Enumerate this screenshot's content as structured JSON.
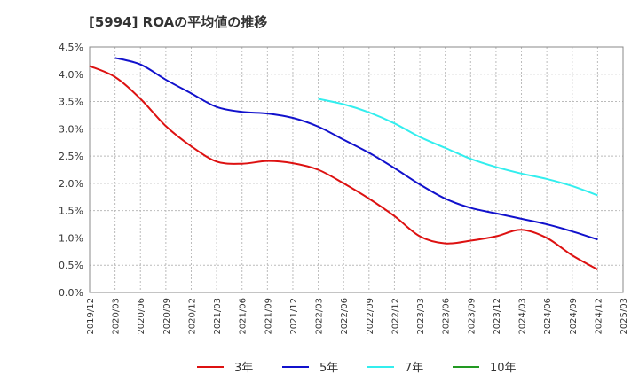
{
  "title": "[5994]  ROAの平均値の推移",
  "chart_data": {
    "type": "line",
    "title": "[5994]  ROAの平均値の推移",
    "xlabel": "",
    "ylabel": "",
    "ylim": [
      0,
      4.5
    ],
    "y_ticks": [
      "0.0%",
      "0.5%",
      "1.0%",
      "1.5%",
      "2.0%",
      "2.5%",
      "3.0%",
      "3.5%",
      "4.0%",
      "4.5%"
    ],
    "x_ticks": [
      "2019/12",
      "2020/03",
      "2020/06",
      "2020/09",
      "2020/12",
      "2021/03",
      "2021/06",
      "2021/09",
      "2021/12",
      "2022/03",
      "2022/06",
      "2022/09",
      "2022/12",
      "2023/03",
      "2023/06",
      "2023/09",
      "2023/12",
      "2024/03",
      "2024/06",
      "2024/09",
      "2024/12",
      "2025/03"
    ],
    "grid": true,
    "legend_position": "bottom",
    "series": [
      {
        "name": "3年",
        "color": "#dd1111",
        "x": [
          "2019/12",
          "2020/03",
          "2020/06",
          "2020/09",
          "2020/12",
          "2021/03",
          "2021/06",
          "2021/09",
          "2021/12",
          "2022/03",
          "2022/06",
          "2022/09",
          "2022/12",
          "2023/03",
          "2023/06",
          "2023/09",
          "2023/12",
          "2024/03",
          "2024/06",
          "2024/09",
          "2024/12"
        ],
        "values": [
          4.15,
          3.95,
          3.55,
          3.05,
          2.68,
          2.4,
          2.36,
          2.41,
          2.37,
          2.25,
          2.0,
          1.72,
          1.4,
          1.03,
          0.9,
          0.95,
          1.03,
          1.15,
          1.0,
          0.68,
          0.42
        ]
      },
      {
        "name": "5年",
        "color": "#1111cc",
        "x": [
          "2020/03",
          "2020/06",
          "2020/09",
          "2020/12",
          "2021/03",
          "2021/06",
          "2021/09",
          "2021/12",
          "2022/03",
          "2022/06",
          "2022/09",
          "2022/12",
          "2023/03",
          "2023/06",
          "2023/09",
          "2023/12",
          "2024/03",
          "2024/06",
          "2024/09",
          "2024/12"
        ],
        "values": [
          4.3,
          4.18,
          3.9,
          3.65,
          3.4,
          3.31,
          3.28,
          3.2,
          3.04,
          2.8,
          2.56,
          2.28,
          1.98,
          1.72,
          1.55,
          1.45,
          1.35,
          1.25,
          1.12,
          0.97
        ]
      },
      {
        "name": "7年",
        "color": "#33eeee",
        "x": [
          "2022/03",
          "2022/06",
          "2022/09",
          "2022/12",
          "2023/03",
          "2023/06",
          "2023/09",
          "2023/12",
          "2024/03",
          "2024/06",
          "2024/09",
          "2024/12"
        ],
        "values": [
          3.55,
          3.45,
          3.3,
          3.1,
          2.85,
          2.65,
          2.45,
          2.3,
          2.18,
          2.08,
          1.95,
          1.78
        ]
      },
      {
        "name": "10年",
        "color": "#229922",
        "x": [],
        "values": []
      }
    ]
  }
}
